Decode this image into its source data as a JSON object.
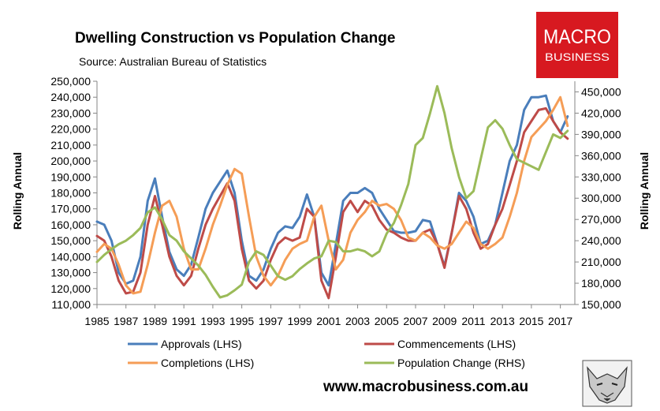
{
  "brand": {
    "logo_line1": "MACRO",
    "logo_line2": "BUSINESS",
    "logo_color": "#d71920",
    "url": "www.macrobusiness.com.au",
    "mascot_icon": "wolf-head-icon"
  },
  "chart_data": {
    "type": "line",
    "title": "Dwelling Construction vs Population Change",
    "subtitle": "Source: Australian Bureau of Statistics",
    "ylabel_left": "Rolling Annual",
    "ylabel_right": "Rolling Annual",
    "ylim_left": [
      110000,
      250000
    ],
    "ylim_right": [
      150000,
      465000
    ],
    "xlim": [
      1985,
      2018
    ],
    "x_ticks": [
      "1985",
      "1987",
      "1989",
      "1991",
      "1993",
      "1995",
      "1997",
      "1999",
      "2001",
      "2003",
      "2005",
      "2007",
      "2009",
      "2011",
      "2013",
      "2015",
      "2017"
    ],
    "y_ticks_left": [
      "110,000",
      "120,000",
      "130,000",
      "140,000",
      "150,000",
      "160,000",
      "170,000",
      "180,000",
      "190,000",
      "200,000",
      "210,000",
      "220,000",
      "230,000",
      "240,000",
      "250,000"
    ],
    "y_ticks_right": [
      "150,000",
      "180,000",
      "210,000",
      "240,000",
      "270,000",
      "300,000",
      "330,000",
      "360,000",
      "390,000",
      "420,000",
      "450,000"
    ],
    "grid": false,
    "legend_position": "bottom",
    "series": [
      {
        "name": "Approvals (LHS)",
        "axis": "left",
        "color": "#4a7ebb",
        "points": [
          [
            1985,
            162000
          ],
          [
            1985.5,
            160000
          ],
          [
            1986,
            150000
          ],
          [
            1986.5,
            130000
          ],
          [
            1987,
            123000
          ],
          [
            1987.5,
            125000
          ],
          [
            1988,
            140000
          ],
          [
            1988.5,
            175000
          ],
          [
            1989,
            189000
          ],
          [
            1989.5,
            165000
          ],
          [
            1990,
            143000
          ],
          [
            1990.5,
            132000
          ],
          [
            1991,
            128000
          ],
          [
            1991.5,
            135000
          ],
          [
            1992,
            152000
          ],
          [
            1992.5,
            170000
          ],
          [
            1993,
            180000
          ],
          [
            1993.5,
            187000
          ],
          [
            1994,
            194000
          ],
          [
            1994.5,
            180000
          ],
          [
            1995,
            150000
          ],
          [
            1995.5,
            128000
          ],
          [
            1996,
            125000
          ],
          [
            1996.5,
            132000
          ],
          [
            1997,
            145000
          ],
          [
            1997.5,
            155000
          ],
          [
            1998,
            159000
          ],
          [
            1998.5,
            158000
          ],
          [
            1999,
            165000
          ],
          [
            1999.5,
            179000
          ],
          [
            2000,
            165000
          ],
          [
            2000.5,
            130000
          ],
          [
            2001,
            122000
          ],
          [
            2001.5,
            148000
          ],
          [
            2002,
            175000
          ],
          [
            2002.5,
            180000
          ],
          [
            2003,
            180000
          ],
          [
            2003.5,
            183000
          ],
          [
            2004,
            180000
          ],
          [
            2004.5,
            170000
          ],
          [
            2005,
            163000
          ],
          [
            2005.5,
            156000
          ],
          [
            2006,
            155000
          ],
          [
            2006.5,
            155000
          ],
          [
            2007,
            156000
          ],
          [
            2007.5,
            163000
          ],
          [
            2008,
            162000
          ],
          [
            2008.5,
            148000
          ],
          [
            2009,
            134000
          ],
          [
            2009.5,
            155000
          ],
          [
            2010,
            180000
          ],
          [
            2010.5,
            175000
          ],
          [
            2011,
            165000
          ],
          [
            2011.5,
            148000
          ],
          [
            2012,
            150000
          ],
          [
            2012.5,
            160000
          ],
          [
            2013,
            180000
          ],
          [
            2013.5,
            200000
          ],
          [
            2014,
            210000
          ],
          [
            2014.5,
            232000
          ],
          [
            2015,
            240000
          ],
          [
            2015.5,
            240000
          ],
          [
            2016,
            241000
          ],
          [
            2016.5,
            225000
          ],
          [
            2017,
            218000
          ],
          [
            2017.5,
            228000
          ]
        ]
      },
      {
        "name": "Commencements (LHS)",
        "axis": "left",
        "color": "#be4b48",
        "points": [
          [
            1985,
            153000
          ],
          [
            1985.5,
            150000
          ],
          [
            1986,
            140000
          ],
          [
            1986.5,
            125000
          ],
          [
            1987,
            117000
          ],
          [
            1987.5,
            118000
          ],
          [
            1988,
            130000
          ],
          [
            1988.5,
            160000
          ],
          [
            1989,
            178000
          ],
          [
            1989.5,
            160000
          ],
          [
            1990,
            140000
          ],
          [
            1990.5,
            128000
          ],
          [
            1991,
            122000
          ],
          [
            1991.5,
            128000
          ],
          [
            1992,
            145000
          ],
          [
            1992.5,
            160000
          ],
          [
            1993,
            170000
          ],
          [
            1993.5,
            178000
          ],
          [
            1994,
            186000
          ],
          [
            1994.5,
            175000
          ],
          [
            1995,
            145000
          ],
          [
            1995.5,
            125000
          ],
          [
            1996,
            120000
          ],
          [
            1996.5,
            125000
          ],
          [
            1997,
            138000
          ],
          [
            1997.5,
            148000
          ],
          [
            1998,
            152000
          ],
          [
            1998.5,
            150000
          ],
          [
            1999,
            152000
          ],
          [
            1999.5,
            170000
          ],
          [
            2000,
            165000
          ],
          [
            2000.5,
            125000
          ],
          [
            2001,
            114000
          ],
          [
            2001.5,
            140000
          ],
          [
            2002,
            168000
          ],
          [
            2002.5,
            175000
          ],
          [
            2003,
            168000
          ],
          [
            2003.5,
            175000
          ],
          [
            2004,
            172000
          ],
          [
            2004.5,
            163000
          ],
          [
            2005,
            157000
          ],
          [
            2005.5,
            155000
          ],
          [
            2006,
            152000
          ],
          [
            2006.5,
            150000
          ],
          [
            2007,
            150000
          ],
          [
            2007.5,
            155000
          ],
          [
            2008,
            157000
          ],
          [
            2008.5,
            148000
          ],
          [
            2009,
            133000
          ],
          [
            2009.5,
            155000
          ],
          [
            2010,
            178000
          ],
          [
            2010.5,
            170000
          ],
          [
            2011,
            155000
          ],
          [
            2011.5,
            145000
          ],
          [
            2012,
            148000
          ],
          [
            2012.5,
            160000
          ],
          [
            2013,
            170000
          ],
          [
            2013.5,
            185000
          ],
          [
            2014,
            200000
          ],
          [
            2014.5,
            218000
          ],
          [
            2015,
            225000
          ],
          [
            2015.5,
            232000
          ],
          [
            2016,
            233000
          ],
          [
            2016.5,
            225000
          ],
          [
            2017,
            218000
          ],
          [
            2017.5,
            214000
          ]
        ]
      },
      {
        "name": "Completions (LHS)",
        "axis": "left",
        "color": "#f59d56",
        "points": [
          [
            1985,
            143000
          ],
          [
            1985.5,
            148000
          ],
          [
            1986,
            145000
          ],
          [
            1986.5,
            135000
          ],
          [
            1987,
            122000
          ],
          [
            1987.5,
            117000
          ],
          [
            1988,
            118000
          ],
          [
            1988.5,
            135000
          ],
          [
            1989,
            155000
          ],
          [
            1989.5,
            172000
          ],
          [
            1990,
            175000
          ],
          [
            1990.5,
            165000
          ],
          [
            1991,
            145000
          ],
          [
            1991.5,
            132000
          ],
          [
            1992,
            132000
          ],
          [
            1992.5,
            145000
          ],
          [
            1993,
            160000
          ],
          [
            1993.5,
            172000
          ],
          [
            1994,
            185000
          ],
          [
            1994.5,
            195000
          ],
          [
            1995,
            192000
          ],
          [
            1995.5,
            165000
          ],
          [
            1996,
            140000
          ],
          [
            1996.5,
            128000
          ],
          [
            1997,
            122000
          ],
          [
            1997.5,
            128000
          ],
          [
            1998,
            138000
          ],
          [
            1998.5,
            145000
          ],
          [
            1999,
            148000
          ],
          [
            1999.5,
            150000
          ],
          [
            2000,
            165000
          ],
          [
            2000.5,
            172000
          ],
          [
            2001,
            150000
          ],
          [
            2001.5,
            132000
          ],
          [
            2002,
            138000
          ],
          [
            2002.5,
            155000
          ],
          [
            2003,
            163000
          ],
          [
            2003.5,
            168000
          ],
          [
            2004,
            175000
          ],
          [
            2004.5,
            172000
          ],
          [
            2005,
            173000
          ],
          [
            2005.5,
            170000
          ],
          [
            2006,
            163000
          ],
          [
            2006.5,
            152000
          ],
          [
            2007,
            150000
          ],
          [
            2007.5,
            155000
          ],
          [
            2008,
            152000
          ],
          [
            2008.5,
            147000
          ],
          [
            2009,
            145000
          ],
          [
            2009.5,
            148000
          ],
          [
            2010,
            155000
          ],
          [
            2010.5,
            162000
          ],
          [
            2011,
            158000
          ],
          [
            2011.5,
            148000
          ],
          [
            2012,
            145000
          ],
          [
            2012.5,
            148000
          ],
          [
            2013,
            152000
          ],
          [
            2013.5,
            165000
          ],
          [
            2014,
            180000
          ],
          [
            2014.5,
            200000
          ],
          [
            2015,
            215000
          ],
          [
            2015.5,
            220000
          ],
          [
            2016,
            225000
          ],
          [
            2016.5,
            232000
          ],
          [
            2017,
            240000
          ],
          [
            2017.5,
            222000
          ]
        ]
      },
      {
        "name": "Population Change (RHS)",
        "axis": "right",
        "color": "#9bbb59",
        "points": [
          [
            1985,
            210000
          ],
          [
            1985.5,
            220000
          ],
          [
            1986,
            228000
          ],
          [
            1986.5,
            235000
          ],
          [
            1987,
            240000
          ],
          [
            1987.5,
            248000
          ],
          [
            1988,
            258000
          ],
          [
            1988.5,
            280000
          ],
          [
            1989,
            287000
          ],
          [
            1989.5,
            270000
          ],
          [
            1990,
            248000
          ],
          [
            1990.5,
            240000
          ],
          [
            1991,
            225000
          ],
          [
            1991.5,
            215000
          ],
          [
            1992,
            205000
          ],
          [
            1992.5,
            192000
          ],
          [
            1993,
            175000
          ],
          [
            1993.5,
            160000
          ],
          [
            1994,
            163000
          ],
          [
            1994.5,
            170000
          ],
          [
            1995,
            178000
          ],
          [
            1995.5,
            210000
          ],
          [
            1996,
            225000
          ],
          [
            1996.5,
            220000
          ],
          [
            1997,
            205000
          ],
          [
            1997.5,
            190000
          ],
          [
            1998,
            185000
          ],
          [
            1998.5,
            190000
          ],
          [
            1999,
            200000
          ],
          [
            1999.5,
            208000
          ],
          [
            2000,
            215000
          ],
          [
            2000.5,
            218000
          ],
          [
            2001,
            240000
          ],
          [
            2001.5,
            238000
          ],
          [
            2002,
            225000
          ],
          [
            2002.5,
            225000
          ],
          [
            2003,
            228000
          ],
          [
            2003.5,
            225000
          ],
          [
            2004,
            218000
          ],
          [
            2004.5,
            225000
          ],
          [
            2005,
            250000
          ],
          [
            2005.5,
            265000
          ],
          [
            2006,
            290000
          ],
          [
            2006.5,
            320000
          ],
          [
            2007,
            375000
          ],
          [
            2007.5,
            385000
          ],
          [
            2008,
            420000
          ],
          [
            2008.5,
            458000
          ],
          [
            2009,
            420000
          ],
          [
            2009.5,
            370000
          ],
          [
            2010,
            330000
          ],
          [
            2010.5,
            300000
          ],
          [
            2011,
            310000
          ],
          [
            2011.5,
            355000
          ],
          [
            2012,
            400000
          ],
          [
            2012.5,
            410000
          ],
          [
            2013,
            398000
          ],
          [
            2013.5,
            375000
          ],
          [
            2014,
            355000
          ],
          [
            2014.5,
            350000
          ],
          [
            2015,
            345000
          ],
          [
            2015.5,
            340000
          ],
          [
            2016,
            365000
          ],
          [
            2016.5,
            390000
          ],
          [
            2017,
            385000
          ],
          [
            2017.5,
            395000
          ]
        ]
      }
    ]
  }
}
